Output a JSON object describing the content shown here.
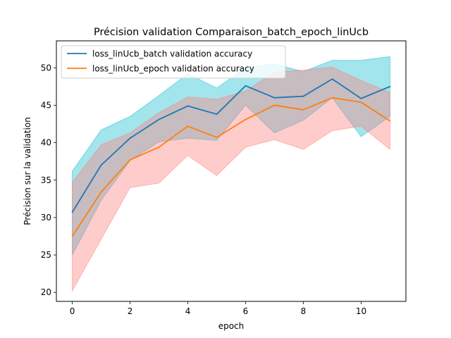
{
  "chart_data": {
    "type": "line",
    "title": "Précision validation Comparaison_batch_epoch_linUcb",
    "xlabel": "epoch",
    "ylabel": "Précision sur la validation",
    "xlim": [
      -0.55,
      11.55
    ],
    "ylim": [
      18.8,
      53.6
    ],
    "xticks": [
      0,
      2,
      4,
      6,
      8,
      10
    ],
    "yticks": [
      20,
      25,
      30,
      35,
      40,
      45,
      50
    ],
    "grid": false,
    "legend_position": "top-left",
    "x": [
      0,
      1,
      2,
      3,
      4,
      5,
      6,
      7,
      8,
      9,
      10,
      11
    ],
    "series": [
      {
        "name": "loss_linUcb_batch validation accuracy",
        "color": "#1f77b4",
        "band_color": "#17becf",
        "values": [
          30.7,
          37.0,
          40.6,
          43.1,
          44.9,
          43.8,
          47.6,
          46.0,
          46.2,
          48.5,
          45.9,
          47.5
        ],
        "upper": [
          36.2,
          41.7,
          43.5,
          46.3,
          49.2,
          47.3,
          50.0,
          50.5,
          49.5,
          51.0,
          51.0,
          51.5
        ],
        "lower": [
          25.0,
          32.3,
          37.6,
          40.1,
          40.6,
          40.3,
          45.0,
          41.3,
          43.0,
          46.0,
          40.8,
          43.5
        ]
      },
      {
        "name": "loss_linUcb_epoch validation accuracy",
        "color": "#ff7f0e",
        "band_color": "#ff7f7f",
        "values": [
          27.5,
          33.4,
          37.7,
          39.4,
          42.2,
          40.7,
          43.1,
          45.0,
          44.4,
          46.0,
          45.4,
          42.9
        ],
        "upper": [
          34.7,
          39.7,
          41.3,
          44.0,
          46.1,
          45.8,
          46.9,
          49.4,
          49.7,
          50.1,
          48.3,
          46.7
        ],
        "lower": [
          20.2,
          27.1,
          34.0,
          34.6,
          38.3,
          35.6,
          39.4,
          40.4,
          39.1,
          41.6,
          42.2,
          39.1
        ]
      }
    ]
  }
}
